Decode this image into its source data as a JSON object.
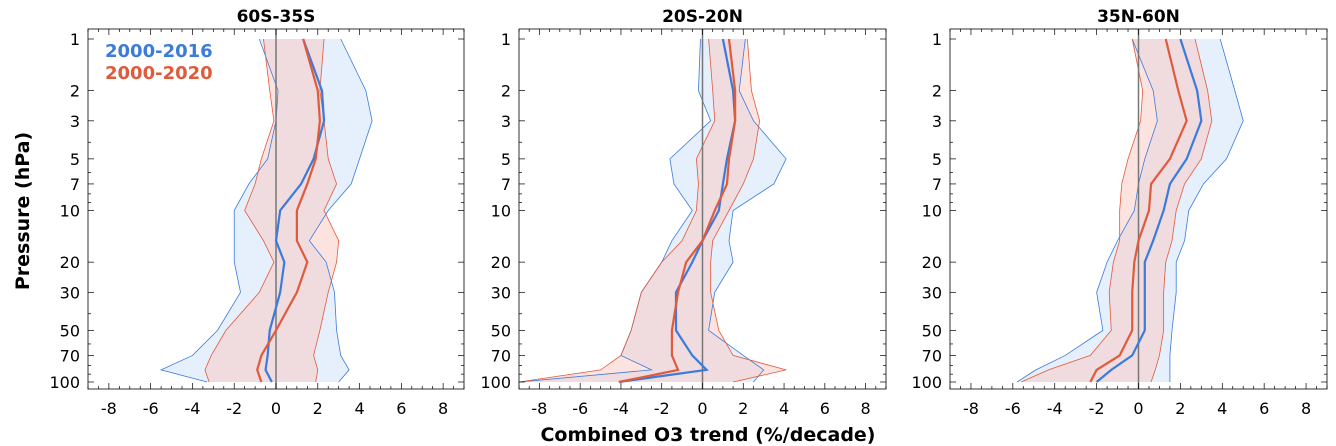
{
  "chart_data": [
    {
      "type": "line",
      "title": "60S-35S",
      "ylabel": "Pressure (hPa)",
      "xlabel": "",
      "xlim": [
        -9,
        9
      ],
      "ylim": [
        100,
        1
      ],
      "yscale": "log",
      "xticks": [
        -8,
        -6,
        -4,
        -2,
        0,
        2,
        4,
        6,
        8
      ],
      "yticks": [
        1,
        2,
        3,
        5,
        7,
        10,
        20,
        30,
        50,
        70,
        100
      ],
      "pressure_levels": [
        1,
        2,
        3,
        5,
        7,
        10,
        15,
        20,
        30,
        50,
        70,
        85,
        100
      ],
      "legend": {
        "position": "top-left",
        "entries": [
          "2000-2016",
          "2000-2020"
        ]
      },
      "series": [
        {
          "name": "2000-2016",
          "color": "#3a7bdc",
          "mean": [
            1.3,
            2.2,
            2.3,
            1.8,
            1.2,
            0.2,
            0.0,
            0.4,
            0.2,
            -0.3,
            -0.4,
            -0.5,
            -0.2
          ],
          "lower": [
            -0.8,
            0.1,
            0.0,
            -0.4,
            -1.3,
            -2.0,
            -2.0,
            -2.0,
            -1.7,
            -2.8,
            -4.0,
            -5.5,
            -3.3
          ],
          "upper": [
            3.1,
            4.3,
            4.6,
            4.0,
            3.6,
            2.5,
            1.6,
            2.4,
            2.8,
            2.9,
            3.1,
            3.5,
            3.0
          ]
        },
        {
          "name": "2000-2020",
          "color": "#e05a3c",
          "mean": [
            1.3,
            2.0,
            2.1,
            1.9,
            1.5,
            1.0,
            1.0,
            1.5,
            1.0,
            0.0,
            -0.7,
            -0.9,
            -0.7
          ],
          "lower": [
            -0.6,
            -0.3,
            -0.1,
            -0.7,
            -1.0,
            -1.5,
            -0.6,
            -0.1,
            -0.8,
            -2.4,
            -3.1,
            -3.4,
            -3.2
          ],
          "upper": [
            2.3,
            2.1,
            2.3,
            2.5,
            2.9,
            2.3,
            3.0,
            2.9,
            2.5,
            2.1,
            1.8,
            2.0,
            1.9
          ]
        }
      ]
    },
    {
      "type": "line",
      "title": "20S-20N",
      "xlabel": "",
      "xlim": [
        -9,
        9
      ],
      "ylim": [
        100,
        1
      ],
      "yscale": "log",
      "xticks": [
        -8,
        -6,
        -4,
        -2,
        0,
        2,
        4,
        6,
        8
      ],
      "yticks": [
        1,
        2,
        3,
        5,
        7,
        10,
        20,
        30,
        50,
        70,
        100
      ],
      "pressure_levels": [
        1,
        2,
        3,
        5,
        7,
        10,
        15,
        20,
        30,
        50,
        70,
        85,
        100
      ],
      "series": [
        {
          "name": "2000-2016",
          "color": "#3a7bdc",
          "mean": [
            1.0,
            1.5,
            1.6,
            1.2,
            1.0,
            0.8,
            0.0,
            -0.5,
            -1.3,
            -1.3,
            -0.5,
            0.2,
            -4.1
          ],
          "lower": [
            -0.1,
            -0.2,
            0.4,
            -1.6,
            -1.4,
            -0.5,
            -1.5,
            -2.0,
            -3.0,
            -3.5,
            -4.0,
            -2.5,
            -9.0
          ],
          "upper": [
            2.1,
            1.8,
            2.5,
            4.1,
            3.5,
            1.5,
            1.3,
            1.5,
            0.6,
            0.3,
            2.0,
            3.0,
            2.5
          ]
        },
        {
          "name": "2000-2020",
          "color": "#e05a3c",
          "mean": [
            1.3,
            1.6,
            1.6,
            1.3,
            1.2,
            0.6,
            0.0,
            -0.8,
            -1.2,
            -1.5,
            -1.5,
            -1.2,
            -4.1
          ],
          "lower": [
            0.3,
            0.5,
            0.6,
            -0.3,
            -0.2,
            -0.3,
            -1.0,
            -2.0,
            -3.0,
            -3.5,
            -4.0,
            -5.0,
            -9.0
          ],
          "upper": [
            2.2,
            2.4,
            2.8,
            2.5,
            2.0,
            1.3,
            0.5,
            0.4,
            0.4,
            0.8,
            1.5,
            4.1,
            1.5
          ]
        }
      ]
    },
    {
      "type": "line",
      "title": "35N-60N",
      "xlabel": "",
      "xlim": [
        -9,
        9
      ],
      "ylim": [
        100,
        1
      ],
      "yscale": "log",
      "xticks": [
        -8,
        -6,
        -4,
        -2,
        0,
        2,
        4,
        6,
        8
      ],
      "yticks": [
        1,
        2,
        3,
        5,
        7,
        10,
        20,
        30,
        50,
        70,
        100
      ],
      "pressure_levels": [
        1,
        2,
        3,
        5,
        7,
        10,
        15,
        20,
        30,
        50,
        70,
        85,
        100
      ],
      "series": [
        {
          "name": "2000-2016",
          "color": "#3a7bdc",
          "mean": [
            2.0,
            2.8,
            3.0,
            2.3,
            1.5,
            1.2,
            0.7,
            0.3,
            0.3,
            0.3,
            -0.3,
            -1.3,
            -2.0
          ],
          "lower": [
            -0.3,
            0.7,
            0.9,
            0.3,
            0.0,
            -0.2,
            -1.0,
            -1.5,
            -2.0,
            -1.7,
            -3.5,
            -4.9,
            -5.8
          ],
          "upper": [
            3.9,
            4.6,
            5.0,
            4.2,
            3.1,
            2.4,
            2.2,
            1.8,
            1.8,
            1.6,
            1.5,
            1.5,
            1.5
          ]
        },
        {
          "name": "2000-2020",
          "color": "#e05a3c",
          "mean": [
            1.3,
            1.9,
            2.3,
            1.5,
            0.6,
            0.5,
            0.0,
            -0.2,
            -0.3,
            -0.3,
            -0.9,
            -2.0,
            -2.3
          ],
          "lower": [
            -0.3,
            0.2,
            0.1,
            -0.5,
            -0.8,
            -0.9,
            -0.9,
            -1.2,
            -1.4,
            -1.3,
            -2.3,
            -4.3,
            -5.6
          ],
          "upper": [
            2.7,
            3.3,
            3.5,
            3.0,
            2.2,
            1.8,
            1.6,
            1.3,
            1.2,
            1.2,
            1.0,
            0.8,
            0.6
          ]
        }
      ]
    }
  ],
  "common_xlabel": "Combined O3 trend (%/decade)"
}
